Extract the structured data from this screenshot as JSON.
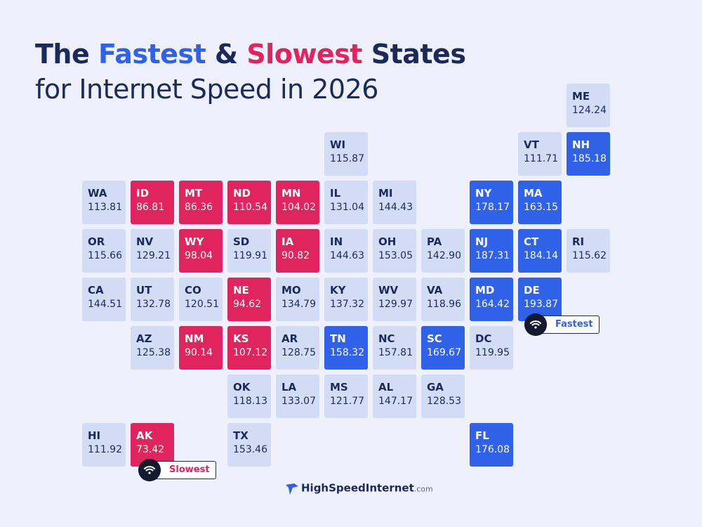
{
  "title": {
    "line1": [
      {
        "text": "The ",
        "color": "#1c2a5a"
      },
      {
        "text": "Fastest",
        "color": "#2f62e8"
      },
      {
        "text": " & ",
        "color": "#1c2a5a"
      },
      {
        "text": "Slowest",
        "color": "#e0245e"
      },
      {
        "text": " States",
        "color": "#1c2a5a"
      }
    ],
    "line2": "for Internet Speed in 2026"
  },
  "tiles": [
    {
      "state": "ME",
      "value": "124.24",
      "color": "#d3dcf5"
    },
    {
      "state": "WI",
      "value": "115.87",
      "color": "#d3dcf5"
    },
    {
      "state": "VT",
      "value": "111.71",
      "color": "#d3dcf5"
    },
    {
      "state": "NH",
      "value": "185.18",
      "color": "#2f62e8"
    },
    {
      "state": "WA",
      "value": "113.81",
      "color": "#d3dcf5"
    },
    {
      "state": "ID",
      "value": "86.81",
      "color": "#e0245e"
    },
    {
      "state": "MT",
      "value": "86.36",
      "color": "#e0245e"
    },
    {
      "state": "ND",
      "value": "110.54",
      "color": "#e0245e"
    },
    {
      "state": "MN",
      "value": "104.02",
      "color": "#e0245e"
    },
    {
      "state": "IL",
      "value": "131.04",
      "color": "#d3dcf5"
    },
    {
      "state": "MI",
      "value": "144.43",
      "color": "#d3dcf5"
    },
    {
      "state": "NY",
      "value": "178.17",
      "color": "#2f62e8"
    },
    {
      "state": "MA",
      "value": "163.15",
      "color": "#2f62e8"
    },
    {
      "state": "OR",
      "value": "115.66",
      "color": "#d3dcf5"
    },
    {
      "state": "NV",
      "value": "129.21",
      "color": "#d3dcf5"
    },
    {
      "state": "WY",
      "value": "98.04",
      "color": "#e0245e"
    },
    {
      "state": "SD",
      "value": "119.91",
      "color": "#d3dcf5"
    },
    {
      "state": "IA",
      "value": "90.82",
      "color": "#e0245e"
    },
    {
      "state": "IN",
      "value": "144.63",
      "color": "#d3dcf5"
    },
    {
      "state": "OH",
      "value": "153.05",
      "color": "#d3dcf5"
    },
    {
      "state": "PA",
      "value": "142.90",
      "color": "#d3dcf5"
    },
    {
      "state": "NJ",
      "value": "187.31",
      "color": "#2f62e8"
    },
    {
      "state": "CT",
      "value": "184.14",
      "color": "#2f62e8"
    },
    {
      "state": "RI",
      "value": "115.62",
      "color": "#d3dcf5"
    },
    {
      "state": "CA",
      "value": "144.51",
      "color": "#d3dcf5"
    },
    {
      "state": "UT",
      "value": "132.78",
      "color": "#d3dcf5"
    },
    {
      "state": "CO",
      "value": "120.51",
      "color": "#d3dcf5"
    },
    {
      "state": "NE",
      "value": "94.62",
      "color": "#e0245e"
    },
    {
      "state": "MO",
      "value": "134.79",
      "color": "#d3dcf5"
    },
    {
      "state": "KY",
      "value": "137.32",
      "color": "#d3dcf5"
    },
    {
      "state": "WV",
      "value": "129.97",
      "color": "#d3dcf5"
    },
    {
      "state": "VA",
      "value": "118.96",
      "color": "#d3dcf5"
    },
    {
      "state": "MD",
      "value": "164.42",
      "color": "#2f62e8"
    },
    {
      "state": "DE",
      "value": "193.87",
      "color": "#2f62e8"
    },
    {
      "state": "AZ",
      "value": "125.38",
      "color": "#d3dcf5"
    },
    {
      "state": "NM",
      "value": "90.14",
      "color": "#e0245e"
    },
    {
      "state": "KS",
      "value": "107.12",
      "color": "#e0245e"
    },
    {
      "state": "AR",
      "value": "128.75",
      "color": "#d3dcf5"
    },
    {
      "state": "TN",
      "value": "158.32",
      "color": "#2f62e8"
    },
    {
      "state": "NC",
      "value": "157.81",
      "color": "#d3dcf5"
    },
    {
      "state": "SC",
      "value": "169.67",
      "color": "#2f62e8"
    },
    {
      "state": "DC",
      "value": "119.95",
      "color": "#d3dcf5"
    },
    {
      "state": "OK",
      "value": "118.13",
      "color": "#d3dcf5"
    },
    {
      "state": "LA",
      "value": "133.07",
      "color": "#d3dcf5"
    },
    {
      "state": "MS",
      "value": "121.77",
      "color": "#d3dcf5"
    },
    {
      "state": "AL",
      "value": "147.17",
      "color": "#d3dcf5"
    },
    {
      "state": "GA",
      "value": "128.53",
      "color": "#d3dcf5"
    },
    {
      "state": "HI",
      "value": "111.92",
      "color": "#d3dcf5"
    },
    {
      "state": "AK",
      "value": "73.42",
      "color": "#e0245e"
    },
    {
      "state": "TX",
      "value": "153.46",
      "color": "#d3dcf5"
    },
    {
      "state": "FL",
      "value": "176.08",
      "color": "#2f62e8"
    }
  ],
  "badges": {
    "fastest": "Fastest",
    "slowest": "Slowest"
  },
  "logo": {
    "name": "HighSpeedInternet",
    "suffix": ".com"
  }
}
